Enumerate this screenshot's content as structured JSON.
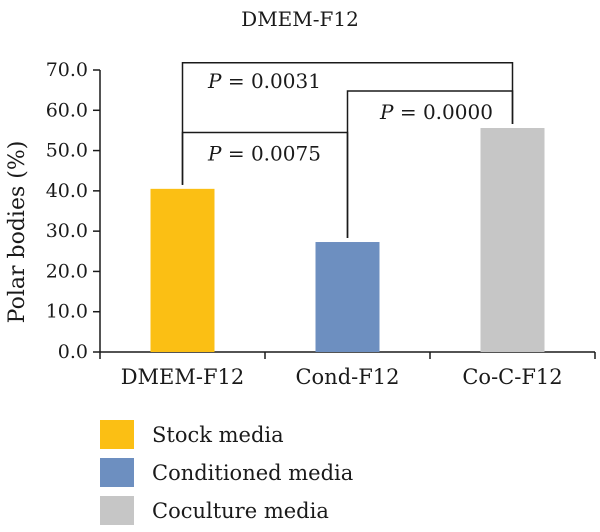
{
  "chart_data": {
    "type": "bar",
    "title": "DMEM-F12",
    "ylabel": "Polar bodies (%)",
    "xlabel": "",
    "ylim": [
      0,
      70
    ],
    "yticks": [
      "0.0",
      "10.0",
      "20.0",
      "30.0",
      "40.0",
      "50.0",
      "60.0",
      "70.0"
    ],
    "categories": [
      "DMEM-F12",
      "Cond-F12",
      "Co-C-F12"
    ],
    "values": [
      40.5,
      27.3,
      55.6
    ],
    "colors": [
      "#fbbf14",
      "#6d8fc0",
      "#c6c6c6"
    ],
    "legend": [
      {
        "label": "Stock media",
        "color": "#fbbf14"
      },
      {
        "label": "Conditioned media",
        "color": "#6d8fc0"
      },
      {
        "label": "Coculture media",
        "color": "#c6c6c6"
      }
    ],
    "annotations": [
      {
        "from": 0,
        "to": 2,
        "p_symbol": "P",
        "p_text": " = 0.0031"
      },
      {
        "from": 0,
        "to": 1,
        "p_symbol": "P",
        "p_text": " = 0.0075"
      },
      {
        "from": 1,
        "to": 2,
        "p_symbol": "P",
        "p_text": " = 0.0000"
      }
    ],
    "grid": false
  }
}
